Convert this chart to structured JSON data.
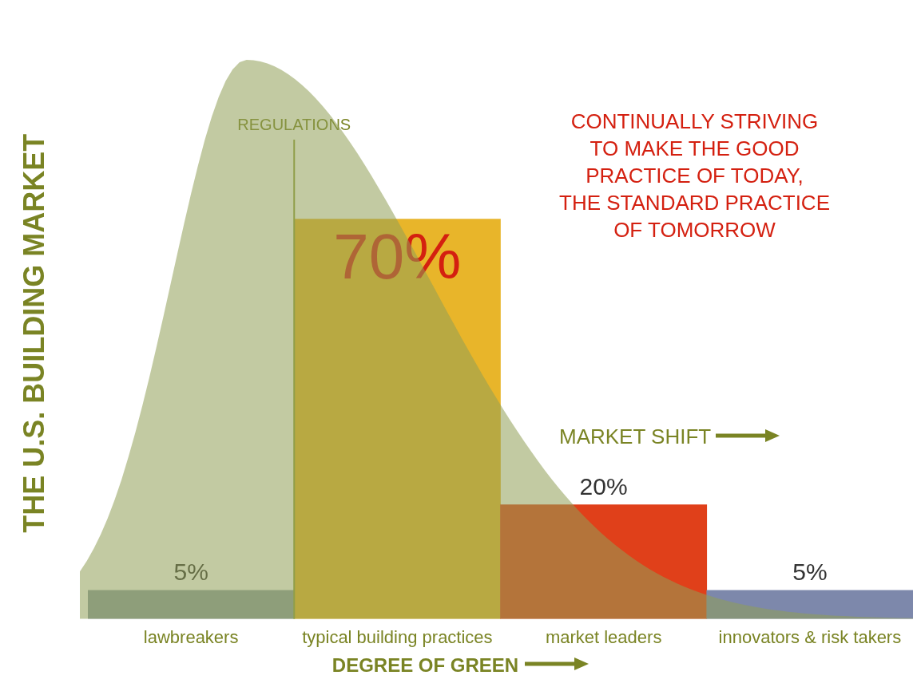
{
  "chart_data": {
    "type": "bar",
    "ylabel": "THE U.S. BUILDING MARKET",
    "xlabel": "DEGREE OF GREEN",
    "categories": [
      "lawbreakers",
      "typical building practices",
      "market leaders",
      "innovators & risk takers"
    ],
    "values": [
      5,
      70,
      20,
      5
    ],
    "colors": [
      "#8c9ea6",
      "#e8b52a",
      "#e0401a",
      "#7d88ab"
    ],
    "value_labels": [
      "5%",
      "70%",
      "20%",
      "5%"
    ],
    "ref_lines": [
      {
        "axis": "x",
        "value": "typical building practices",
        "label": "REGULATIONS",
        "color": "#8f9e3a"
      }
    ],
    "annotations": [
      "CONTINUALLY STRIVING\nTO MAKE THE GOOD\nPRACTICE OF TODAY,\nTHE STANDARD PRACTICE\nOF TOMORROW",
      "MARKET SHIFT"
    ],
    "grid": false,
    "legend": false,
    "tick_labels": "x"
  }
}
